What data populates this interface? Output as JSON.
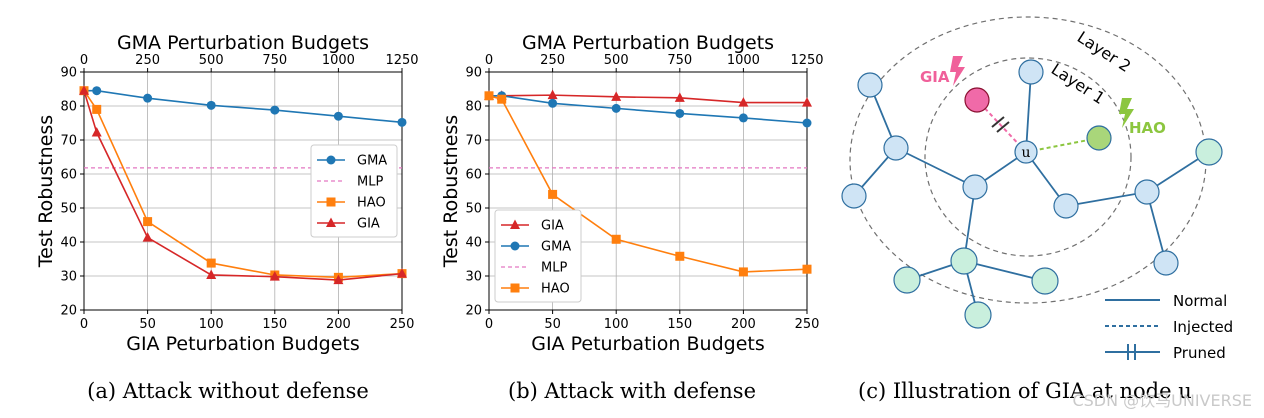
{
  "colors": {
    "GMA": "#1f77b4",
    "HAO": "#ff7f0e",
    "GIA": "#d62728",
    "MLP": "#e377c2",
    "node_blue": "#cfe4f5",
    "node_green": "#c9efdd",
    "node_injected": "#f06aa8",
    "node_hao": "#a9d67a",
    "edge": "#2f6fa0",
    "gia_label": "#f0609a",
    "hao_label": "#8cc63f"
  },
  "chart_data": [
    {
      "type": "line",
      "caption": "(a) Attack without defense",
      "xlabel": "GIA Peturbation Budgets",
      "ylabel": "Test Robustness",
      "x2label": "GMA Perturbation Budgets",
      "xlim": [
        0,
        250
      ],
      "ylim": [
        20,
        90
      ],
      "x2lim": [
        0,
        1250
      ],
      "xticks": [
        0,
        50,
        100,
        150,
        200,
        250
      ],
      "yticks": [
        20,
        30,
        40,
        50,
        60,
        70,
        80,
        90
      ],
      "x2ticks": [
        0,
        250,
        500,
        750,
        1000,
        1250
      ],
      "grid": true,
      "legend_position": "center-right",
      "legend_order": [
        "GMA",
        "MLP",
        "HAO",
        "GIA"
      ],
      "series": [
        {
          "name": "GMA",
          "axis": "top",
          "marker": "circle",
          "x": [
            0,
            50,
            250,
            500,
            750,
            1000,
            1250
          ],
          "y": [
            84.5,
            84.5,
            82.3,
            80.2,
            78.8,
            77.0,
            75.2
          ]
        },
        {
          "name": "MLP",
          "axis": "bottom",
          "marker": "none",
          "dashed": true,
          "x": [
            0,
            250
          ],
          "y": [
            61.8,
            61.8
          ]
        },
        {
          "name": "HAO",
          "axis": "bottom",
          "marker": "square",
          "x": [
            0,
            10,
            50,
            100,
            150,
            200,
            250
          ],
          "y": [
            84.5,
            79.0,
            46.0,
            33.8,
            30.3,
            29.6,
            30.7
          ]
        },
        {
          "name": "GIA",
          "axis": "bottom",
          "marker": "triangle",
          "x": [
            0,
            10,
            50,
            100,
            150,
            200,
            250
          ],
          "y": [
            84.5,
            72.2,
            41.3,
            30.3,
            29.8,
            28.8,
            30.7
          ]
        }
      ]
    },
    {
      "type": "line",
      "caption": "(b) Attack with defense",
      "xlabel": "GIA Peturbation Budgets",
      "ylabel": "Test Robustness",
      "x2label": "GMA Perturbation Budgets",
      "xlim": [
        0,
        250
      ],
      "ylim": [
        20,
        90
      ],
      "x2lim": [
        0,
        1250
      ],
      "xticks": [
        0,
        50,
        100,
        150,
        200,
        250
      ],
      "yticks": [
        20,
        30,
        40,
        50,
        60,
        70,
        80,
        90
      ],
      "x2ticks": [
        0,
        250,
        500,
        750,
        1000,
        1250
      ],
      "grid": true,
      "legend_position": "lower-left",
      "legend_order": [
        "GIA",
        "GMA",
        "MLP",
        "HAO"
      ],
      "series": [
        {
          "name": "GIA",
          "axis": "bottom",
          "marker": "triangle",
          "x": [
            0,
            10,
            50,
            100,
            150,
            200,
            250
          ],
          "y": [
            83.0,
            83.0,
            83.2,
            82.7,
            82.4,
            81.0,
            81.0
          ]
        },
        {
          "name": "GMA",
          "axis": "top",
          "marker": "circle",
          "x": [
            0,
            50,
            250,
            500,
            750,
            1000,
            1250
          ],
          "y": [
            83.0,
            83.0,
            80.8,
            79.3,
            77.8,
            76.5,
            75.0
          ]
        },
        {
          "name": "MLP",
          "axis": "bottom",
          "marker": "none",
          "dashed": true,
          "x": [
            0,
            250
          ],
          "y": [
            61.8,
            61.8
          ]
        },
        {
          "name": "HAO",
          "axis": "bottom",
          "marker": "square",
          "x": [
            0,
            10,
            50,
            100,
            150,
            200,
            250
          ],
          "y": [
            83.0,
            82.0,
            54.0,
            40.8,
            35.8,
            31.2,
            32.0
          ]
        }
      ]
    }
  ],
  "illustration": {
    "caption": "(c) Illustration of GIA at node u",
    "layer1_label": "Layer 1",
    "layer2_label": "Layer 2",
    "gia_label": "GIA",
    "hao_label": "HAO",
    "center_node_label": "u",
    "legend": {
      "normal": "Normal",
      "injected": "Injected",
      "pruned": "Pruned"
    }
  },
  "watermark": "CSDN @饮马UNIVERSE"
}
